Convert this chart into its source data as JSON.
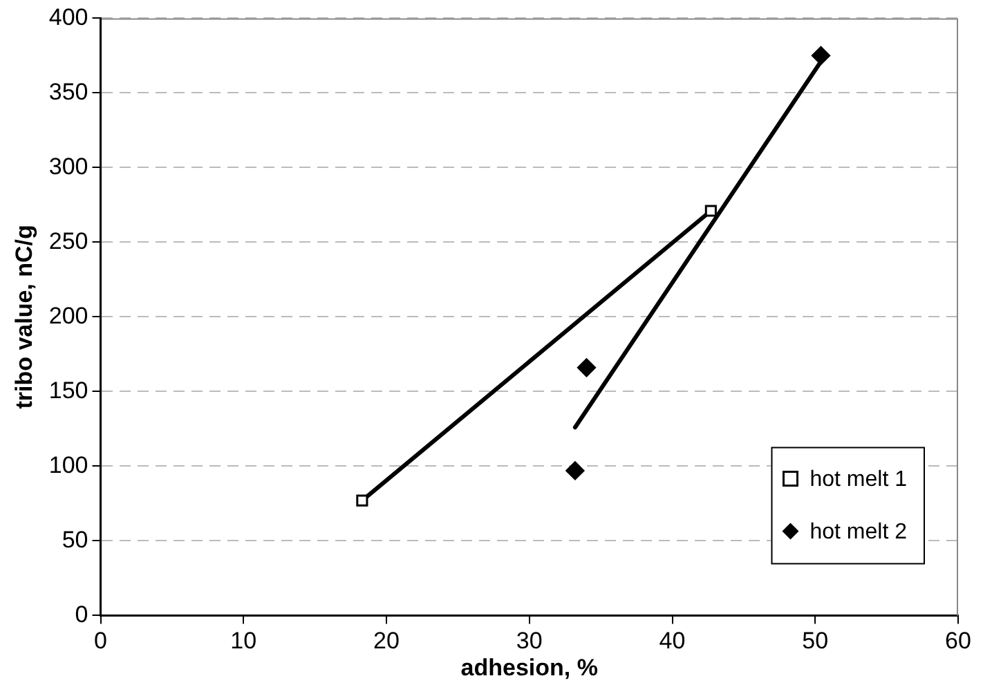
{
  "chart_data": {
    "type": "scatter",
    "xlabel": "adhesion, %",
    "ylabel": "tribo value, nC/g",
    "xlim": [
      0,
      60
    ],
    "xticks": [
      0,
      10,
      20,
      30,
      40,
      50,
      60
    ],
    "ylim": [
      0,
      400
    ],
    "yticks": [
      0,
      50,
      100,
      150,
      200,
      250,
      300,
      350,
      400
    ],
    "grid": "y",
    "legend": "bottom right",
    "series": [
      {
        "name": "hot melt 1",
        "type": "line",
        "color": "#000000",
        "marker": "square",
        "x": [
          18.3,
          42.7
        ],
        "values": [
          77,
          271
        ]
      },
      {
        "name": "hot melt 2",
        "type": "scatter",
        "color": "#000000",
        "marker": "diamond",
        "x": [
          33.2,
          34.0,
          50.4
        ],
        "values": [
          97,
          166,
          375
        ]
      },
      {
        "type": "line",
        "color": "#000000",
        "marker": "none",
        "x": [
          33.2,
          50.4
        ],
        "values": [
          126,
          371
        ]
      }
    ]
  }
}
